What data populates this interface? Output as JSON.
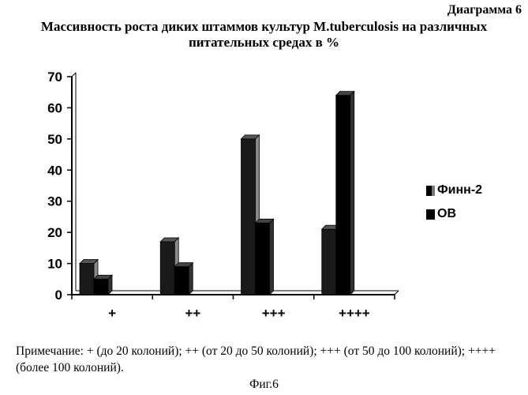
{
  "header": {
    "diagram_number": "Диаграмма 6",
    "title_line1": "Массивность роста диких штаммов культур M.tuberculosis на различных",
    "title_line2": "питательных средах в %"
  },
  "chart_data": {
    "type": "bar",
    "categories": [
      "+",
      "++",
      "+++",
      "++++"
    ],
    "series": [
      {
        "name": "Финн-2",
        "values": [
          10,
          17,
          50,
          21
        ]
      },
      {
        "name": "OB",
        "values": [
          5,
          9,
          23,
          64
        ]
      }
    ],
    "yticks": [
      "0",
      "10",
      "20",
      "30",
      "40",
      "50",
      "60",
      "70"
    ],
    "ylim": [
      0,
      70
    ],
    "grid": false,
    "legend": "right"
  },
  "note": "Примечание:  + (до 20 колоний); ++ (от 20 до 50 колоний); +++ (от 50 до 100 колоний); ++++ (более 100 колоний).",
  "figure_caption": "Фиг.6"
}
